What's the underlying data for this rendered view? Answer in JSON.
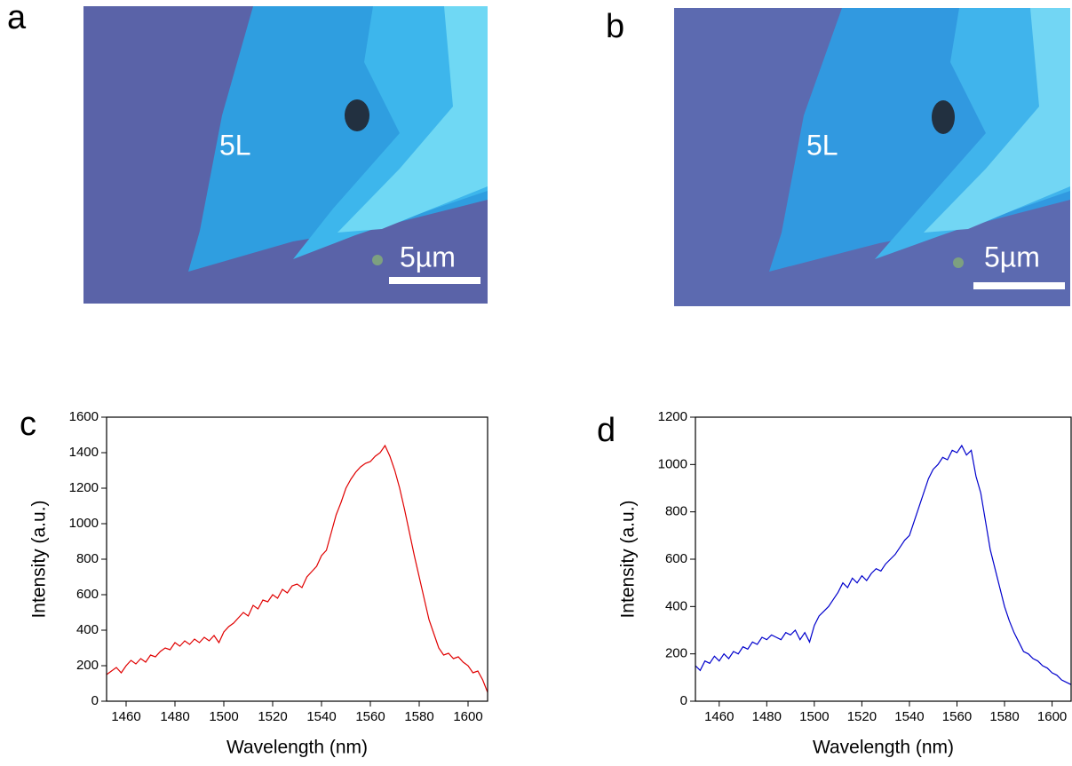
{
  "images": [
    {
      "panel_label": "a",
      "flake_label": "5L",
      "scale_bar": "5µm"
    },
    {
      "panel_label": "b",
      "flake_label": "5L",
      "scale_bar": "5µm"
    }
  ],
  "chart_data": [
    {
      "type": "line",
      "panel_label": "c",
      "x_label": "Wavelength (nm)",
      "y_label": "Intensity (a.u.)",
      "color": "#e00000",
      "x": [
        1452,
        1454,
        1456,
        1458,
        1460,
        1462,
        1464,
        1466,
        1468,
        1470,
        1472,
        1474,
        1476,
        1478,
        1480,
        1482,
        1484,
        1486,
        1488,
        1490,
        1492,
        1494,
        1496,
        1498,
        1500,
        1502,
        1504,
        1506,
        1508,
        1510,
        1512,
        1514,
        1516,
        1518,
        1520,
        1522,
        1524,
        1526,
        1528,
        1530,
        1532,
        1534,
        1536,
        1538,
        1540,
        1542,
        1544,
        1546,
        1548,
        1550,
        1552,
        1554,
        1556,
        1558,
        1560,
        1562,
        1564,
        1566,
        1568,
        1570,
        1572,
        1574,
        1576,
        1578,
        1580,
        1582,
        1584,
        1586,
        1588,
        1590,
        1592,
        1594,
        1596,
        1598,
        1600,
        1602,
        1604,
        1606,
        1608
      ],
      "values": [
        150,
        170,
        190,
        160,
        200,
        230,
        210,
        240,
        220,
        260,
        250,
        280,
        300,
        290,
        330,
        310,
        340,
        320,
        350,
        330,
        360,
        340,
        370,
        330,
        390,
        420,
        440,
        470,
        500,
        480,
        540,
        520,
        570,
        560,
        600,
        580,
        630,
        610,
        650,
        660,
        640,
        700,
        730,
        760,
        820,
        850,
        950,
        1050,
        1120,
        1200,
        1250,
        1290,
        1320,
        1340,
        1350,
        1380,
        1400,
        1440,
        1380,
        1300,
        1200,
        1080,
        950,
        820,
        700,
        580,
        460,
        380,
        300,
        260,
        270,
        240,
        250,
        220,
        200,
        160,
        170,
        120,
        50
      ],
      "xlim": [
        1452,
        1608
      ],
      "xticks": [
        1460,
        1480,
        1500,
        1520,
        1540,
        1560,
        1580,
        1600
      ],
      "ylim": [
        0,
        1600
      ],
      "yticks": [
        0,
        200,
        400,
        600,
        800,
        1000,
        1200,
        1400,
        1600
      ]
    },
    {
      "type": "line",
      "panel_label": "d",
      "x_label": "Wavelength (nm)",
      "y_label": "Intensity (a.u.)",
      "color": "#0000cc",
      "x": [
        1450,
        1452,
        1454,
        1456,
        1458,
        1460,
        1462,
        1464,
        1466,
        1468,
        1470,
        1472,
        1474,
        1476,
        1478,
        1480,
        1482,
        1484,
        1486,
        1488,
        1490,
        1492,
        1494,
        1496,
        1498,
        1500,
        1502,
        1504,
        1506,
        1508,
        1510,
        1512,
        1514,
        1516,
        1518,
        1520,
        1522,
        1524,
        1526,
        1528,
        1530,
        1532,
        1534,
        1536,
        1538,
        1540,
        1542,
        1544,
        1546,
        1548,
        1550,
        1552,
        1554,
        1556,
        1558,
        1560,
        1562,
        1564,
        1566,
        1568,
        1570,
        1572,
        1574,
        1576,
        1578,
        1580,
        1582,
        1584,
        1586,
        1588,
        1590,
        1592,
        1594,
        1596,
        1598,
        1600,
        1602,
        1604,
        1606,
        1608
      ],
      "values": [
        150,
        130,
        170,
        160,
        190,
        170,
        200,
        180,
        210,
        200,
        230,
        220,
        250,
        240,
        270,
        260,
        280,
        270,
        260,
        290,
        280,
        300,
        260,
        290,
        250,
        320,
        360,
        380,
        400,
        430,
        460,
        500,
        480,
        520,
        500,
        530,
        510,
        540,
        560,
        550,
        580,
        600,
        620,
        650,
        680,
        700,
        760,
        820,
        880,
        940,
        980,
        1000,
        1030,
        1020,
        1060,
        1050,
        1080,
        1040,
        1060,
        950,
        880,
        760,
        640,
        560,
        480,
        400,
        340,
        290,
        250,
        210,
        200,
        180,
        170,
        150,
        140,
        120,
        110,
        90,
        80,
        70
      ],
      "xlim": [
        1450,
        1608
      ],
      "xticks": [
        1460,
        1480,
        1500,
        1520,
        1540,
        1560,
        1580,
        1600
      ],
      "ylim": [
        0,
        1200
      ],
      "yticks": [
        0,
        200,
        400,
        600,
        800,
        1000,
        1200
      ]
    }
  ]
}
